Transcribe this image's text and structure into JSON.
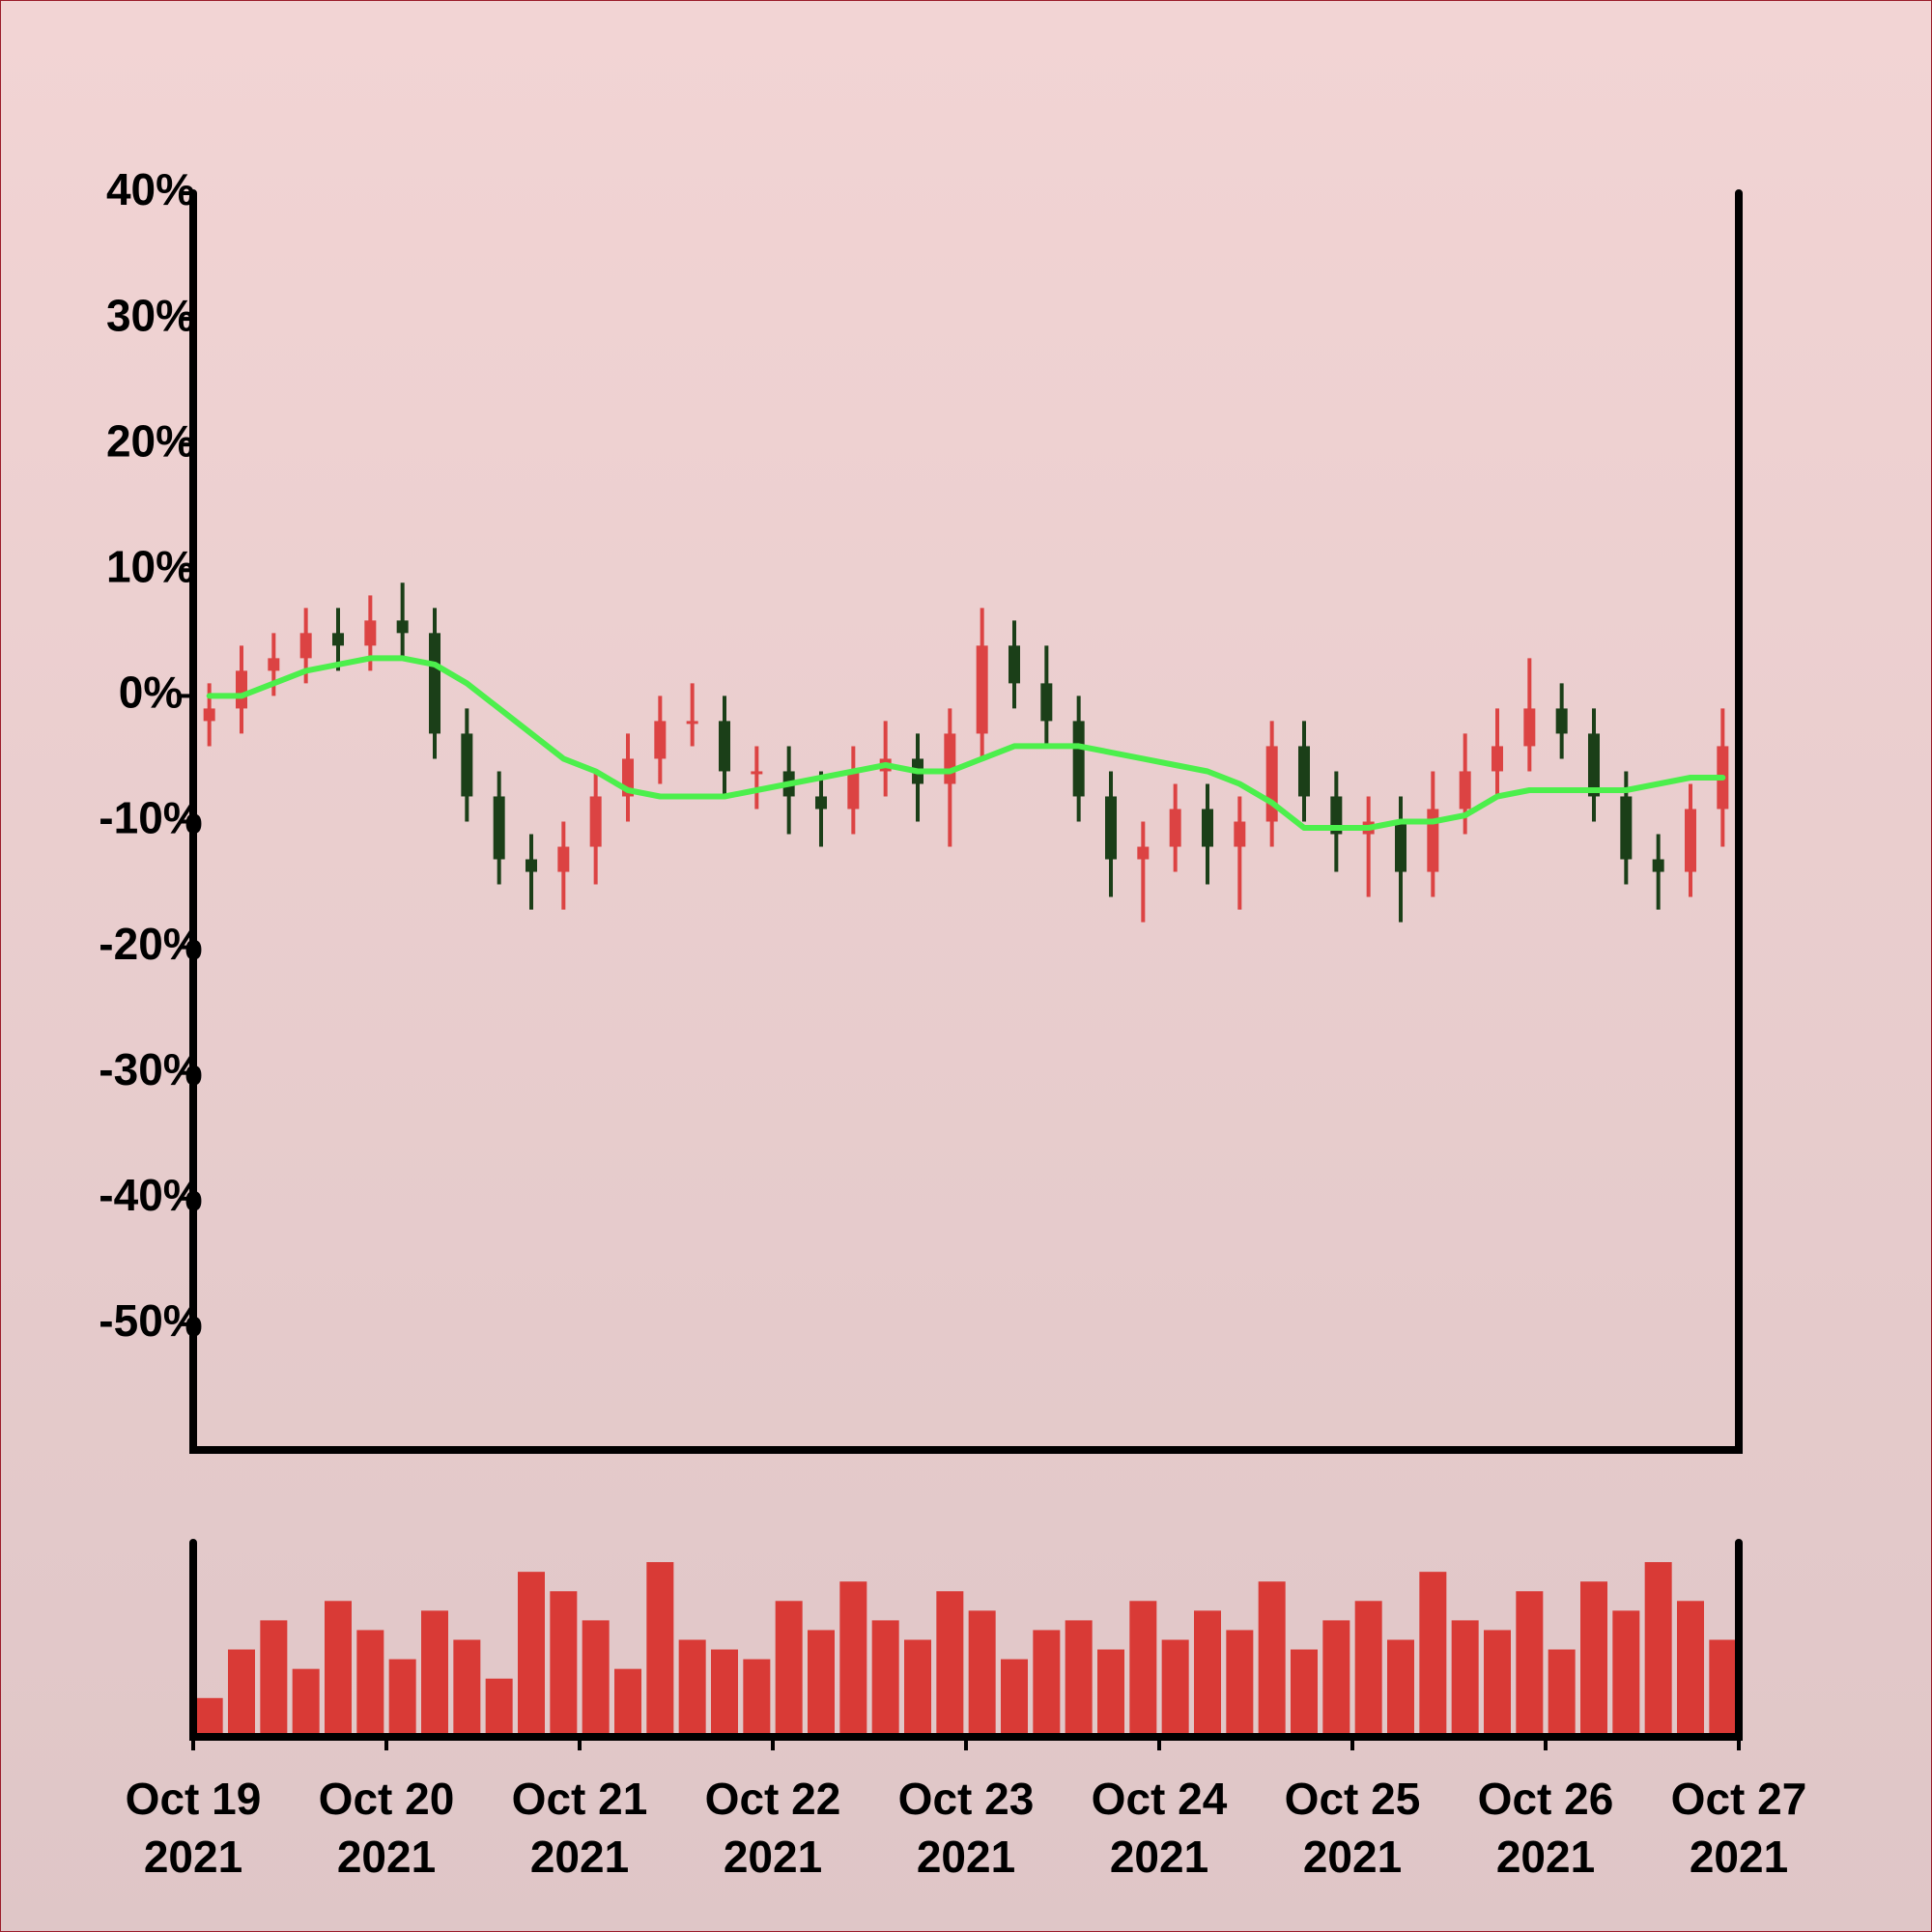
{
  "chart_data": {
    "type": "candlestick",
    "x": [
      "2021-10-19T02:00",
      "2021-10-19T06:00",
      "2021-10-19T10:00",
      "2021-10-19T14:00",
      "2021-10-19T18:00",
      "2021-10-19T22:00",
      "2021-10-20T02:00",
      "2021-10-20T06:00",
      "2021-10-20T10:00",
      "2021-10-20T14:00",
      "2021-10-20T18:00",
      "2021-10-20T22:00",
      "2021-10-21T02:00",
      "2021-10-21T06:00",
      "2021-10-21T10:00",
      "2021-10-21T14:00",
      "2021-10-21T18:00",
      "2021-10-21T22:00",
      "2021-10-22T02:00",
      "2021-10-22T06:00",
      "2021-10-22T10:00",
      "2021-10-22T14:00",
      "2021-10-22T18:00",
      "2021-10-22T22:00",
      "2021-10-23T02:00",
      "2021-10-23T06:00",
      "2021-10-23T10:00",
      "2021-10-23T14:00",
      "2021-10-23T18:00",
      "2021-10-23T22:00",
      "2021-10-24T02:00",
      "2021-10-24T06:00",
      "2021-10-24T10:00",
      "2021-10-24T14:00",
      "2021-10-24T18:00",
      "2021-10-24T22:00",
      "2021-10-25T02:00",
      "2021-10-25T06:00",
      "2021-10-25T10:00",
      "2021-10-25T14:00",
      "2021-10-25T18:00",
      "2021-10-25T22:00",
      "2021-10-26T02:00",
      "2021-10-26T06:00",
      "2021-10-26T10:00",
      "2021-10-26T14:00",
      "2021-10-26T18:00",
      "2021-10-26T22:00"
    ],
    "open": [
      -2,
      -1,
      2,
      3,
      5,
      4,
      6,
      5,
      -3,
      -8,
      -13,
      -14,
      -12,
      -8,
      -5,
      -2,
      -2,
      -6,
      -6,
      -8,
      -9,
      -6,
      -5,
      -7,
      -3,
      4,
      1,
      -2,
      -8,
      -13,
      -12,
      -9,
      -12,
      -10,
      -4,
      -8,
      -11,
      -10,
      -14,
      -9,
      -6,
      -4,
      -1,
      -3,
      -8,
      -13,
      -14,
      -9
    ],
    "high": [
      1,
      4,
      5,
      7,
      7,
      8,
      9,
      7,
      -1,
      -6,
      -11,
      -10,
      -6,
      -3,
      0,
      1,
      0,
      -4,
      -4,
      -6,
      -4,
      -2,
      -3,
      -1,
      7,
      6,
      4,
      0,
      -6,
      -10,
      -7,
      -7,
      -8,
      -2,
      -2,
      -6,
      -8,
      -8,
      -6,
      -3,
      -1,
      3,
      1,
      -1,
      -6,
      -11,
      -7,
      -1
    ],
    "low": [
      -4,
      -3,
      0,
      1,
      2,
      2,
      3,
      -5,
      -10,
      -15,
      -17,
      -17,
      -15,
      -10,
      -7,
      -4,
      -8,
      -9,
      -11,
      -12,
      -11,
      -8,
      -10,
      -12,
      -5,
      -1,
      -4,
      -10,
      -16,
      -18,
      -14,
      -15,
      -17,
      -12,
      -10,
      -14,
      -16,
      -18,
      -16,
      -11,
      -8,
      -6,
      -5,
      -10,
      -15,
      -17,
      -16,
      -12
    ],
    "close": [
      -1,
      2,
      3,
      5,
      4,
      6,
      5,
      -3,
      -8,
      -13,
      -14,
      -12,
      -8,
      -5,
      -2,
      -2,
      -6,
      -6,
      -8,
      -9,
      -6,
      -5,
      -7,
      -3,
      4,
      1,
      -2,
      -8,
      -13,
      -12,
      -9,
      -12,
      -10,
      -4,
      -8,
      -11,
      -10,
      -14,
      -9,
      -6,
      -4,
      -1,
      -3,
      -8,
      -13,
      -14,
      -9,
      -4
    ],
    "up_color": "#dc4343",
    "down_color": "#1b3f18",
    "moving_average": {
      "color": "#4cef4c",
      "values": [
        0,
        0,
        1,
        2,
        2.5,
        3,
        3,
        2.5,
        1,
        -1,
        -3,
        -5,
        -6,
        -7.5,
        -8,
        -8,
        -8,
        -7.5,
        -7,
        -6.5,
        -6,
        -5.5,
        -6,
        -6,
        -5,
        -4,
        -4,
        -4,
        -4.5,
        -5,
        -5.5,
        -6,
        -7,
        -8.5,
        -10.5,
        -10.5,
        -10.5,
        -10,
        -10,
        -9.5,
        -8,
        -7.5,
        -7.5,
        -7.5,
        -7.5,
        -7,
        -6.5,
        -6.5
      ]
    },
    "volume": {
      "color": "#d93a36",
      "ylim": [
        0,
        100
      ],
      "values": [
        20,
        45,
        60,
        35,
        70,
        55,
        40,
        65,
        50,
        30,
        85,
        75,
        60,
        35,
        90,
        50,
        45,
        40,
        70,
        55,
        80,
        60,
        50,
        75,
        65,
        40,
        55,
        60,
        45,
        70,
        50,
        65,
        55,
        80,
        45,
        60,
        70,
        50,
        85,
        60,
        55,
        75,
        45,
        80,
        65,
        90,
        70,
        50
      ]
    },
    "xlim": [
      "2021-10-19",
      "2021-10-27"
    ],
    "xticks": [
      {
        "value": "2021-10-19",
        "label": "Oct 19 2021"
      },
      {
        "value": "2021-10-20",
        "label": "Oct 20 2021"
      },
      {
        "value": "2021-10-21",
        "label": "Oct 21 2021"
      },
      {
        "value": "2021-10-22",
        "label": "Oct 22 2021"
      },
      {
        "value": "2021-10-23",
        "label": "Oct 23 2021"
      },
      {
        "value": "2021-10-24",
        "label": "Oct 24 2021"
      },
      {
        "value": "2021-10-25",
        "label": "Oct 25 2021"
      },
      {
        "value": "2021-10-26",
        "label": "Oct 26 2021"
      },
      {
        "value": "2021-10-27",
        "label": "Oct 27 2021"
      }
    ],
    "ylim": [
      -60,
      40
    ],
    "yticks": [
      {
        "value": 40,
        "label": "40%"
      },
      {
        "value": 30,
        "label": "30%"
      },
      {
        "value": 20,
        "label": "20%"
      },
      {
        "value": 10,
        "label": "10%"
      },
      {
        "value": 0,
        "label": "0%"
      },
      {
        "value": -10,
        "label": "-10%"
      },
      {
        "value": -20,
        "label": "-20%"
      },
      {
        "value": -30,
        "label": "-30%"
      },
      {
        "value": -40,
        "label": "-40%"
      },
      {
        "value": -50,
        "label": "-50%"
      }
    ]
  }
}
